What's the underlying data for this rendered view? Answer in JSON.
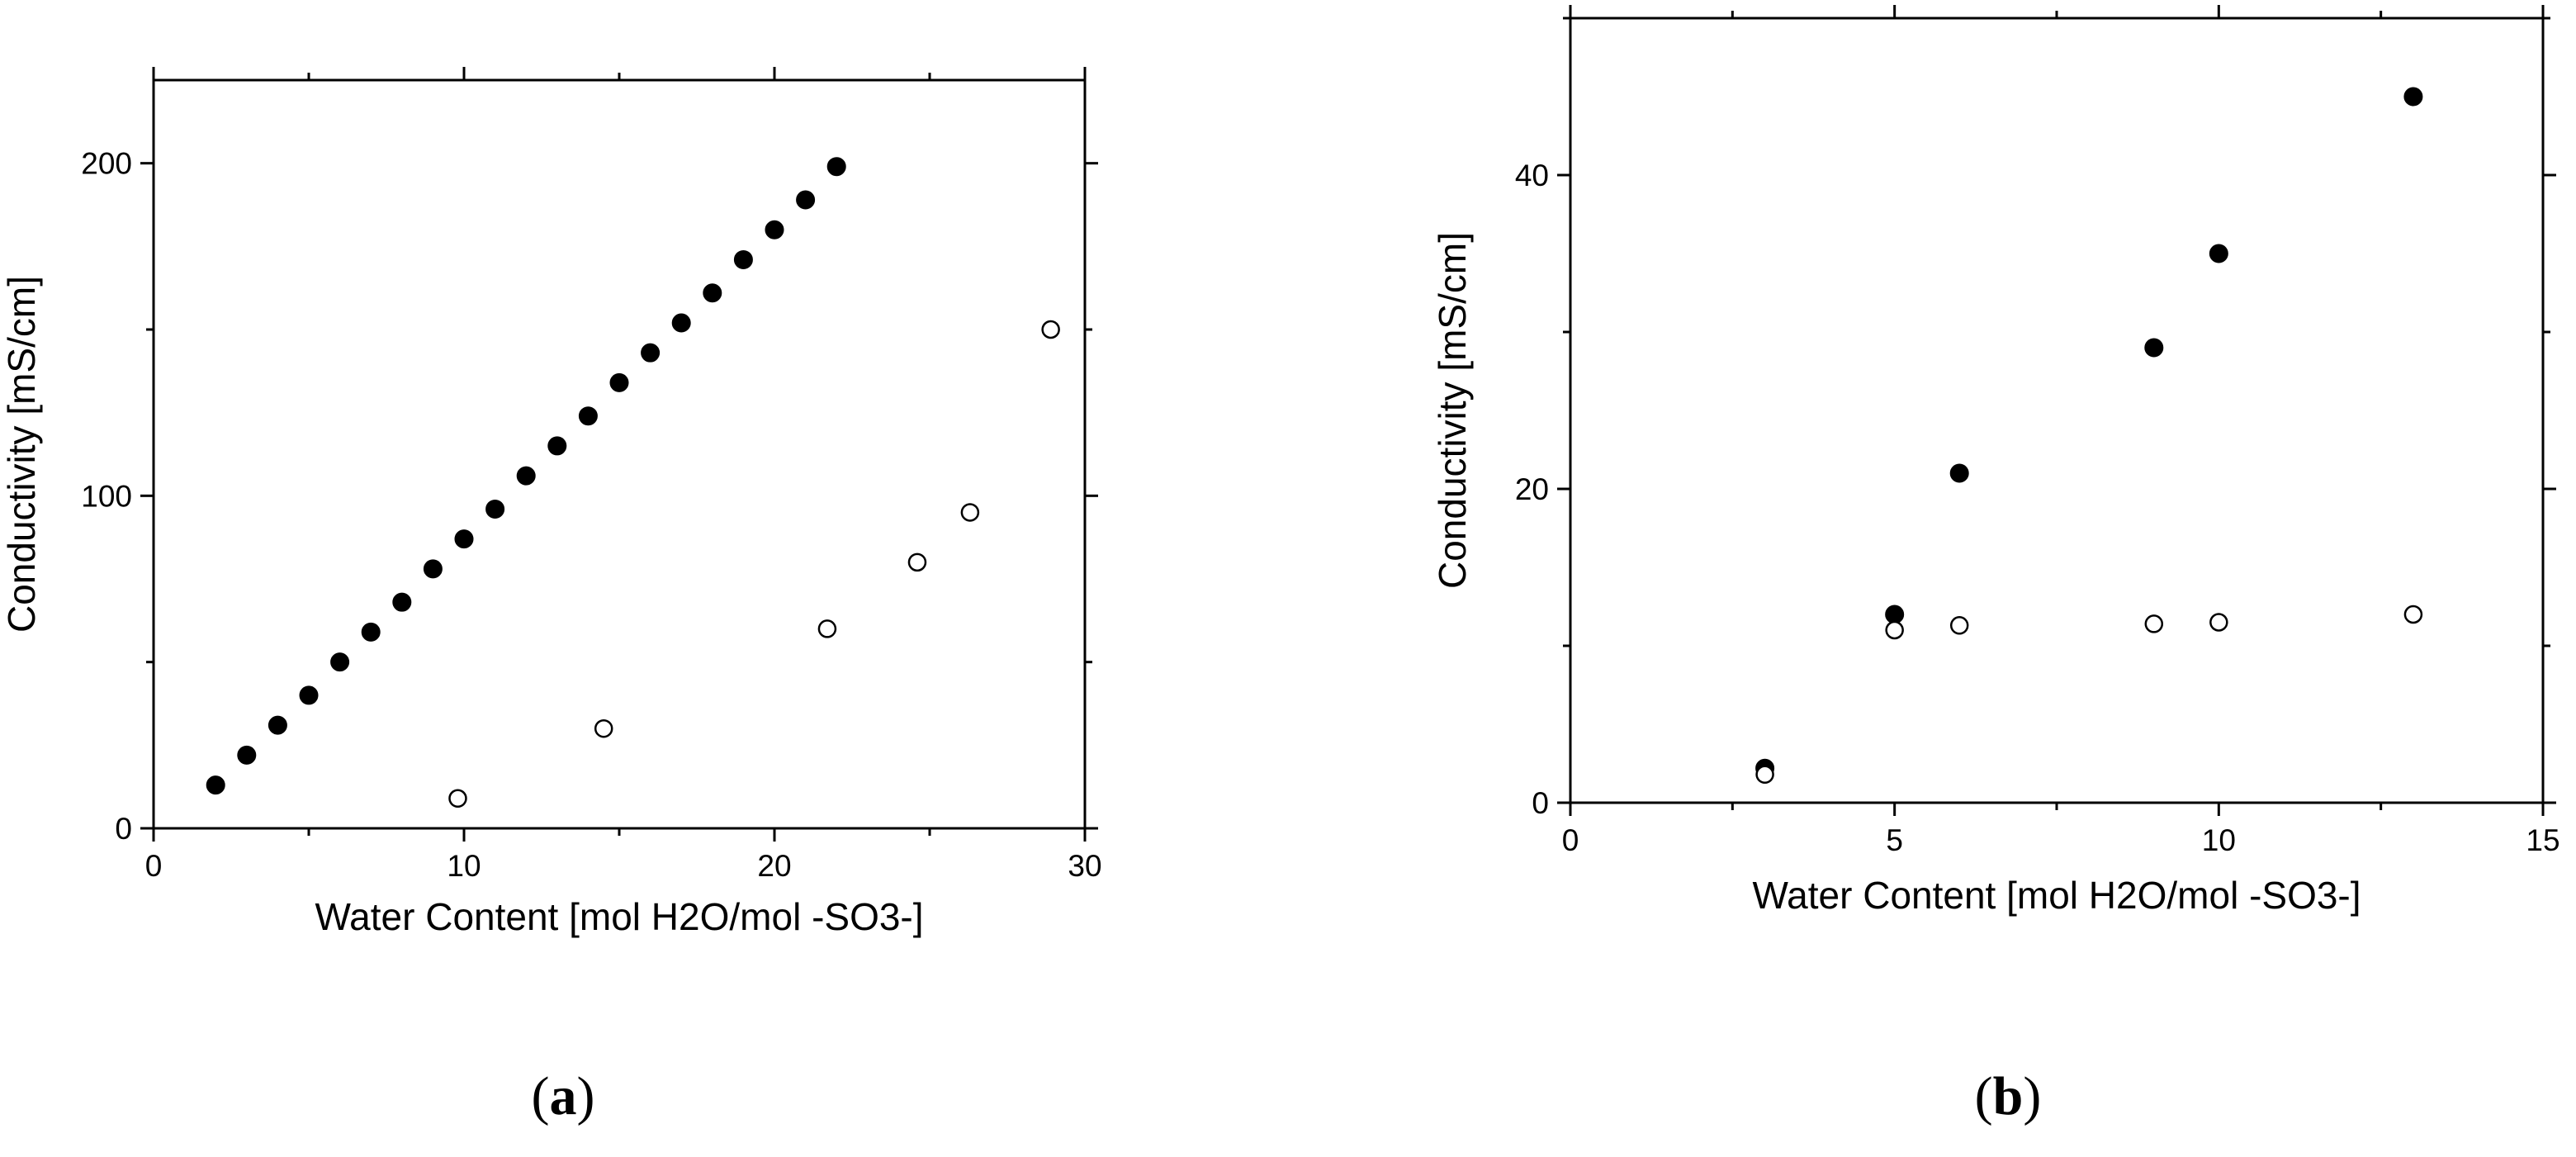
{
  "chart_data": [
    {
      "type": "scatter",
      "panel": "(a)",
      "panel_letter": "a",
      "xlabel": "Water Content [mol H2O/mol -SO3-]",
      "ylabel": "Conductivity [mS/cm]",
      "xlim": [
        0,
        30
      ],
      "ylim": [
        0,
        225
      ],
      "xticks": [
        0,
        10,
        20,
        30
      ],
      "yticks": [
        0,
        100,
        200
      ],
      "x_minor_step": 5,
      "y_minor_step": 50,
      "grid": false,
      "series": [
        {
          "marker": "filled-circle",
          "x": [
            2,
            3,
            4,
            5,
            6,
            7,
            8,
            9,
            10,
            11,
            12,
            13,
            14,
            15,
            16,
            17,
            18,
            19,
            20,
            21,
            22
          ],
          "y": [
            13,
            22,
            31,
            40,
            50,
            59,
            68,
            78,
            87,
            96,
            106,
            115,
            124,
            134,
            143,
            152,
            161,
            171,
            180,
            189,
            199
          ]
        },
        {
          "marker": "open-circle",
          "x": [
            9.8,
            14.5,
            21.7,
            24.6,
            26.3,
            28.9
          ],
          "y": [
            9,
            30,
            60,
            80,
            95,
            150
          ]
        }
      ]
    },
    {
      "type": "scatter",
      "panel": "(b)",
      "panel_letter": "b",
      "xlabel": "Water Content [mol H2O/mol -SO3-]",
      "ylabel": "Conductivity [mS/cm]",
      "xlim": [
        0,
        15
      ],
      "ylim": [
        0,
        50
      ],
      "xticks": [
        0,
        5,
        10,
        15
      ],
      "yticks": [
        0,
        20,
        40
      ],
      "x_minor_step": 2.5,
      "y_minor_step": 10,
      "grid": false,
      "series": [
        {
          "marker": "filled-circle",
          "x": [
            3,
            5,
            6,
            9,
            10,
            13
          ],
          "y": [
            2.2,
            12,
            21,
            29,
            35,
            45
          ]
        },
        {
          "marker": "open-circle",
          "x": [
            3,
            5,
            6,
            9,
            10,
            13
          ],
          "y": [
            1.8,
            11,
            11.3,
            11.4,
            11.5,
            12
          ]
        }
      ]
    }
  ]
}
